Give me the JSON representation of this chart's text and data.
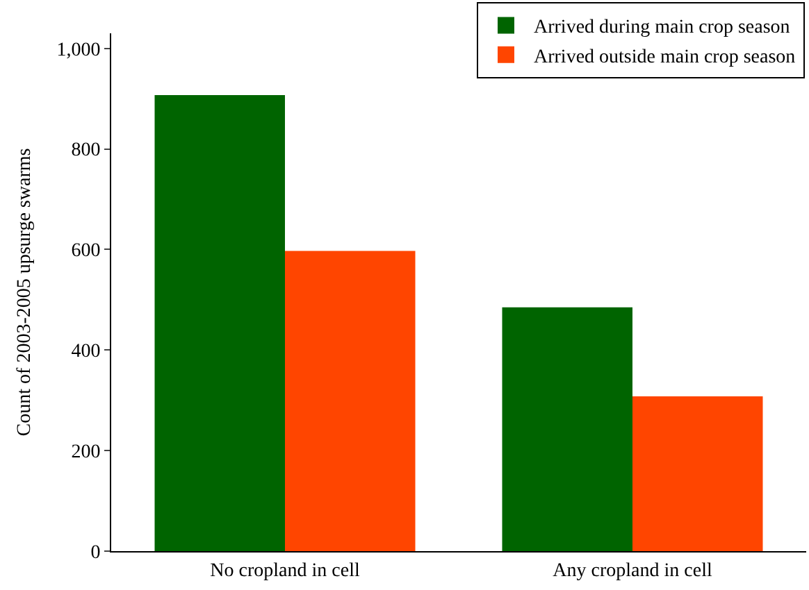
{
  "chart_data": {
    "type": "bar",
    "ylabel": "Count of 2003-2005 upsurge swarms",
    "categories": [
      "No cropland in cell",
      "Any cropland in cell"
    ],
    "series": [
      {
        "name": "Arrived during main crop season",
        "color": "#006400",
        "values": [
          907,
          485
        ]
      },
      {
        "name": "Arrived outside main crop season",
        "color": "#ff4500",
        "values": [
          597,
          308
        ]
      }
    ],
    "ylim": [
      0,
      1030
    ],
    "yticks": [
      0,
      {
        "value": 200,
        "label": "200"
      },
      {
        "value": 400,
        "label": "400"
      },
      {
        "value": 600,
        "label": "600"
      },
      {
        "value": 800,
        "label": "800"
      },
      {
        "value": 1000,
        "label": "1,000"
      }
    ],
    "legend": "top right"
  }
}
